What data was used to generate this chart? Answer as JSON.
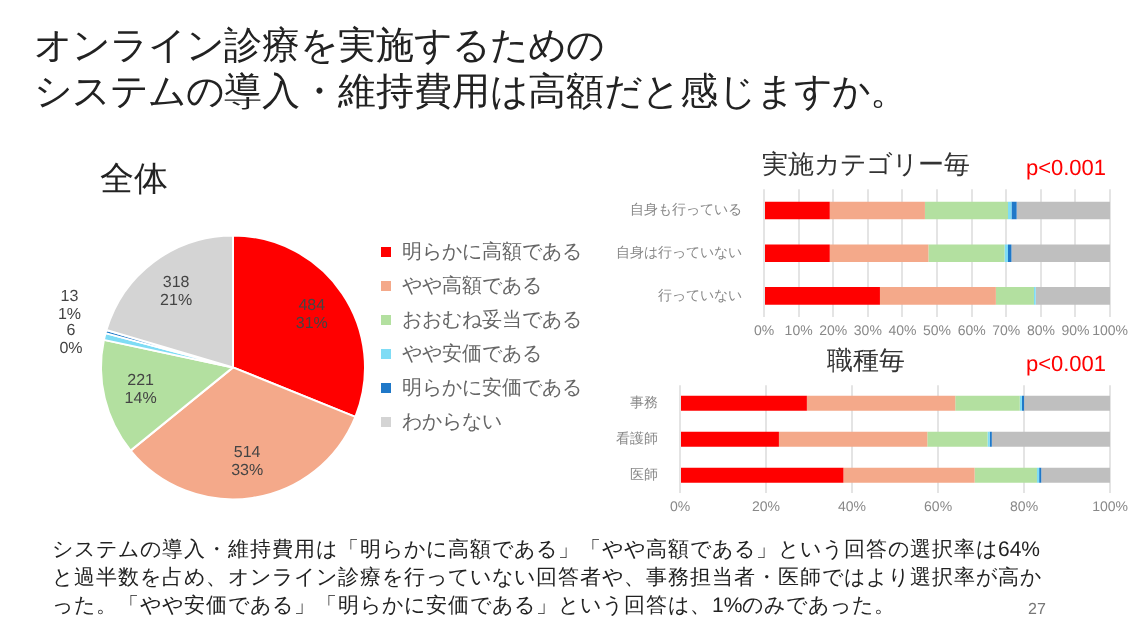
{
  "chart_data": [
    {
      "type": "other",
      "title": "オンライン診療を実施するための",
      "subtitle": "システムの導入・維持費用は高額だと感じますか。",
      "annotations": [
        "システムの導入・維持費用は「明らかに高額である」「やや高額である」という回答の選択率は64%と過半数を占め、オンライン診療を行っていない回答者や、事務担当者・医師ではより選択率が高かった。「やや安価である」「明らかに安価である」という回答は、1%のみであった。",
        "27"
      ]
    },
    {
      "type": "pie",
      "title": "全体",
      "categories": [
        "明らかに高額である",
        "やや高額である",
        "おおむね妥当である",
        "やや安価である",
        "明らかに安価である",
        "わからない"
      ],
      "values": [
        484,
        514,
        221,
        13,
        6,
        318
      ],
      "colors": [
        "#ff0000",
        "#f4a98a",
        "#b3e0a0",
        "#7fdcf5",
        "#1f78c8",
        "#d4d4d4"
      ],
      "value_labels": [
        "484\n31%",
        "514\n33%",
        "221\n14%",
        "13\n1%",
        "6\n0%",
        "318\n21%"
      ],
      "legend": "right"
    },
    {
      "type": "bar",
      "orientation": "horizontal",
      "stacked": true,
      "title": "実施カテゴリー毎",
      "categories": [
        "自身も行っている",
        "自身は行っていない",
        "行っていない"
      ],
      "series": [
        {
          "color": "#ff0000",
          "values": [
            19,
            19,
            33.5
          ]
        },
        {
          "color": "#f4a98a",
          "values": [
            27.5,
            28.5,
            33.5
          ]
        },
        {
          "color": "#b3e0a0",
          "values": [
            24,
            22,
            11
          ]
        },
        {
          "color": "#7fdcf5",
          "values": [
            1,
            1,
            0.5
          ]
        },
        {
          "color": "#1f78c8",
          "values": [
            1.5,
            1,
            0
          ]
        },
        {
          "color": "#bfbfbf",
          "values": [
            27,
            28.5,
            21.5
          ]
        }
      ],
      "xlim": [
        0,
        100
      ],
      "xticks": [
        {
          "value": 0,
          "label": "0%"
        },
        {
          "value": 10,
          "label": "10%"
        },
        {
          "value": 20,
          "label": "20%"
        },
        {
          "value": 30,
          "label": "30%"
        },
        {
          "value": 40,
          "label": "40%"
        },
        {
          "value": 50,
          "label": "50%"
        },
        {
          "value": 60,
          "label": "60%"
        },
        {
          "value": 70,
          "label": "70%"
        },
        {
          "value": 80,
          "label": "80%"
        },
        {
          "value": 90,
          "label": "90%"
        },
        {
          "value": 100,
          "label": "100%"
        }
      ],
      "grid": "x",
      "annotations": [
        "p<0.001"
      ]
    },
    {
      "type": "bar",
      "orientation": "horizontal",
      "stacked": true,
      "title": "職種毎",
      "categories": [
        "事務",
        "看護師",
        "医師"
      ],
      "series": [
        {
          "color": "#ff0000",
          "values": [
            29.5,
            23,
            38
          ]
        },
        {
          "color": "#f4a98a",
          "values": [
            34.5,
            34.5,
            30.5
          ]
        },
        {
          "color": "#b3e0a0",
          "values": [
            15,
            14,
            14.5
          ]
        },
        {
          "color": "#7fdcf5",
          "values": [
            0.5,
            0.5,
            0.5
          ]
        },
        {
          "color": "#1f78c8",
          "values": [
            0.5,
            0.5,
            0.5
          ]
        },
        {
          "color": "#bfbfbf",
          "values": [
            20,
            27.5,
            16
          ]
        }
      ],
      "xlim": [
        0,
        100
      ],
      "xticks": [
        {
          "value": 0,
          "label": "0%"
        },
        {
          "value": 20,
          "label": "20%"
        },
        {
          "value": 40,
          "label": "40%"
        },
        {
          "value": 60,
          "label": "60%"
        },
        {
          "value": 80,
          "label": "80%"
        },
        {
          "value": 100,
          "label": "100%"
        }
      ],
      "grid": "x",
      "annotations": [
        "p<0.001"
      ]
    }
  ]
}
